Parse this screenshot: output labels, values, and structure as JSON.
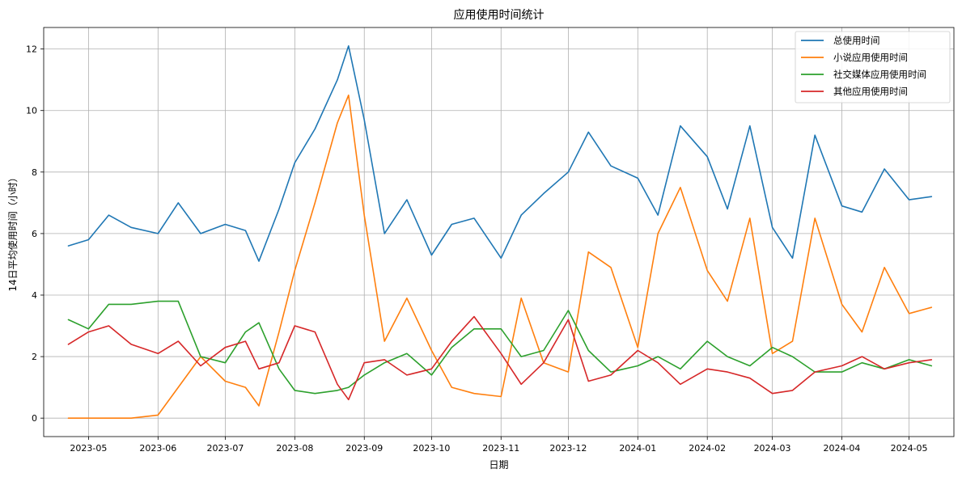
{
  "chart_data": {
    "type": "line",
    "title": "应用使用时间统计",
    "xlabel": "日期",
    "ylabel": "14日平均使用时间（小时）",
    "x_ticks": [
      "2023-05",
      "2023-06",
      "2023-07",
      "2023-08",
      "2023-09",
      "2023-10",
      "2023-11",
      "2023-12",
      "2024-01",
      "2024-02",
      "2024-03",
      "2024-04",
      "2024-05"
    ],
    "y_ticks": [
      "0",
      "2",
      "4",
      "6",
      "8",
      "10",
      "12"
    ],
    "xlim": [
      "2023-04-11",
      "2024-05-21"
    ],
    "ylim": [
      -0.6,
      12.7
    ],
    "grid": true,
    "legend_position": "top-right",
    "x": [
      "2023-04-22",
      "2023-05-01",
      "2023-05-10",
      "2023-05-20",
      "2023-06-01",
      "2023-06-10",
      "2023-06-20",
      "2023-07-01",
      "2023-07-10",
      "2023-07-16",
      "2023-07-25",
      "2023-08-01",
      "2023-08-10",
      "2023-08-20",
      "2023-08-25",
      "2023-09-01",
      "2023-09-10",
      "2023-09-20",
      "2023-10-01",
      "2023-10-10",
      "2023-10-20",
      "2023-11-01",
      "2023-11-10",
      "2023-11-20",
      "2023-12-01",
      "2023-12-10",
      "2023-12-20",
      "2024-01-01",
      "2024-01-10",
      "2024-01-20",
      "2024-02-01",
      "2024-02-10",
      "2024-02-20",
      "2024-03-01",
      "2024-03-10",
      "2024-03-20",
      "2024-04-01",
      "2024-04-10",
      "2024-04-20",
      "2024-05-01",
      "2024-05-11"
    ],
    "series": [
      {
        "name": "总使用时间",
        "color": "#1f77b4",
        "values": [
          5.6,
          5.8,
          6.6,
          6.2,
          6.0,
          7.0,
          6.0,
          6.3,
          6.1,
          5.1,
          6.8,
          8.3,
          9.4,
          11.0,
          12.1,
          9.7,
          6.0,
          7.1,
          5.3,
          6.3,
          6.5,
          5.2,
          6.6,
          7.3,
          8.0,
          9.3,
          8.2,
          7.8,
          6.6,
          9.5,
          8.5,
          6.8,
          9.5,
          6.2,
          5.2,
          9.2,
          6.9,
          6.7,
          8.1,
          7.1,
          7.2
        ]
      },
      {
        "name": "小说应用使用时间",
        "color": "#ff7f0e",
        "values": [
          0.0,
          0.0,
          0.0,
          0.0,
          0.1,
          1.0,
          2.0,
          1.2,
          1.0,
          0.4,
          2.8,
          4.8,
          7.0,
          9.6,
          10.5,
          6.6,
          2.5,
          3.9,
          2.2,
          1.0,
          0.8,
          0.7,
          3.9,
          1.8,
          1.5,
          5.4,
          4.9,
          2.3,
          6.0,
          7.5,
          4.8,
          3.8,
          6.5,
          2.1,
          2.5,
          6.5,
          3.7,
          2.8,
          4.9,
          3.4,
          3.6
        ]
      },
      {
        "name": "社交媒体应用使用时间",
        "color": "#2ca02c",
        "values": [
          3.2,
          2.9,
          3.7,
          3.7,
          3.8,
          3.8,
          2.0,
          1.8,
          2.8,
          3.1,
          1.6,
          0.9,
          0.8,
          0.9,
          1.0,
          1.4,
          1.8,
          2.1,
          1.4,
          2.3,
          2.9,
          2.9,
          2.0,
          2.2,
          3.5,
          2.2,
          1.5,
          1.7,
          2.0,
          1.6,
          2.5,
          2.0,
          1.7,
          2.3,
          2.0,
          1.5,
          1.5,
          1.8,
          1.6,
          1.9,
          1.7
        ]
      },
      {
        "name": "其他应用使用时间",
        "color": "#d62728",
        "values": [
          2.4,
          2.8,
          3.0,
          2.4,
          2.1,
          2.5,
          1.7,
          2.3,
          2.5,
          1.6,
          1.8,
          3.0,
          2.8,
          1.1,
          0.6,
          1.8,
          1.9,
          1.4,
          1.6,
          2.5,
          3.3,
          2.1,
          1.1,
          1.8,
          3.2,
          1.2,
          1.4,
          2.2,
          1.8,
          1.1,
          1.6,
          1.5,
          1.3,
          0.8,
          0.9,
          1.5,
          1.7,
          2.0,
          1.6,
          1.8,
          1.9
        ]
      }
    ]
  }
}
